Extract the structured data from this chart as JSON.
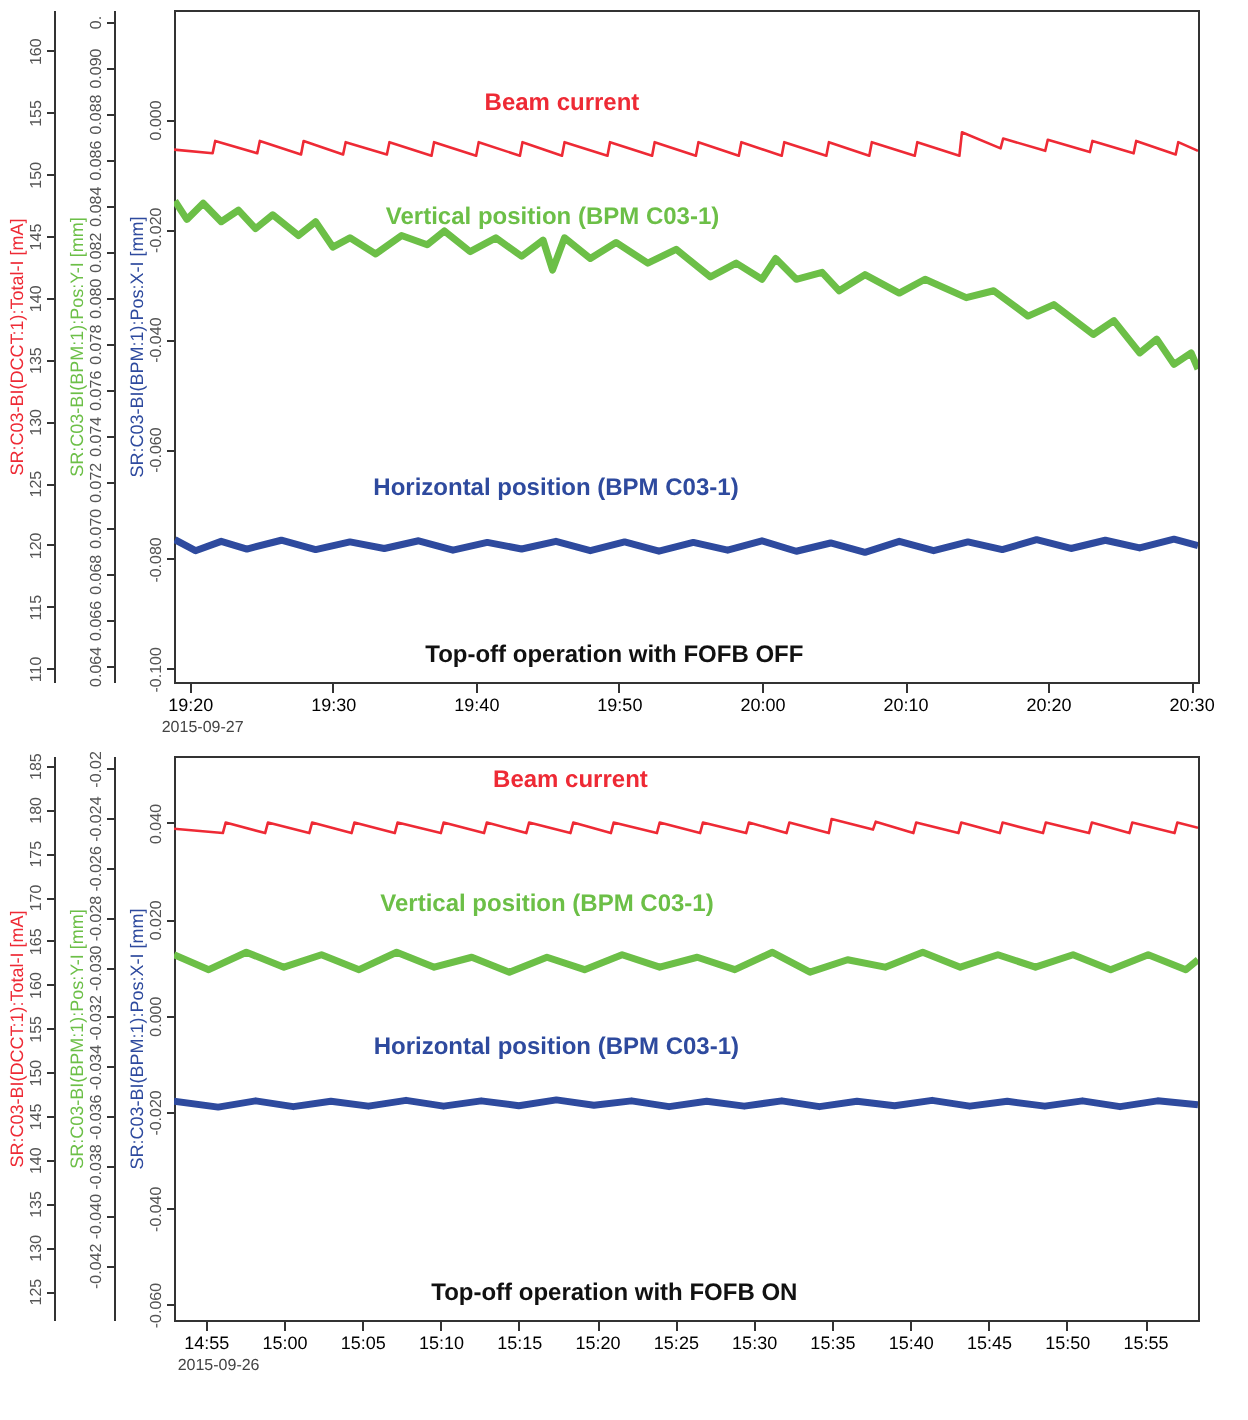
{
  "chart_data": [
    {
      "type": "line",
      "title": "Top-off operation with FOFB OFF",
      "ylabel": "SR:C03-BI(DCCT:1):Total-I [mA]",
      "y2label": "SR:C03-BI(BPM:1):Pos:Y-I [mm]",
      "y3label": "SR:C03-BI(BPM:1):Pos:X-I [mm]",
      "annotations": [
        "2015-09-27"
      ],
      "xlim": [
        19.315,
        20.508
      ],
      "xticks": [
        {
          "value": 19.3333,
          "label": "19:20"
        },
        {
          "value": 19.5,
          "label": "19:30"
        },
        {
          "value": 19.6667,
          "label": "19:40"
        },
        {
          "value": 19.8333,
          "label": "19:50"
        },
        {
          "value": 20,
          "label": "20:00"
        },
        {
          "value": 20.1667,
          "label": "20:10"
        },
        {
          "value": 20.3333,
          "label": "20:20"
        },
        {
          "value": 20.5,
          "label": "20:30"
        }
      ],
      "ylim": [
        108.9,
        163.3
      ],
      "yticks": [
        110,
        115,
        120,
        125,
        130,
        135,
        140,
        145,
        150,
        155,
        160
      ],
      "y2lim": [
        0.0633,
        0.0925
      ],
      "y2ticks": [
        0.064,
        0.066,
        0.068,
        {
          "value": 0.07,
          "label": "0.070"
        },
        0.072,
        0.074,
        0.076,
        0.078,
        {
          "value": 0.08,
          "label": "0.080"
        },
        0.082,
        0.084,
        0.086,
        0.088,
        {
          "value": 0.09,
          "label": "0.090"
        },
        {
          "value": 0.092,
          "label": "0."
        }
      ],
      "y3lim": [
        -0.1024,
        0.0199
      ],
      "y3ticks": [
        {
          "value": -0.1,
          "label": "-0.100"
        },
        {
          "value": -0.08,
          "label": "-0.080"
        },
        {
          "value": -0.06,
          "label": "-0.060"
        },
        {
          "value": -0.04,
          "label": "-0.040"
        },
        {
          "value": -0.02,
          "label": "-0.020"
        },
        {
          "value": 0,
          "label": "0.000"
        }
      ],
      "series": [
        {
          "name": "Beam current",
          "color": "#ee2a35",
          "x": [
            19.315,
            19.36,
            19.363,
            19.412,
            19.415,
            19.463,
            19.466,
            19.512,
            19.515,
            19.563,
            19.566,
            19.615,
            19.618,
            19.667,
            19.67,
            19.718,
            19.721,
            19.767,
            19.77,
            19.82,
            19.823,
            19.872,
            19.875,
            19.923,
            19.926,
            19.973,
            19.976,
            20.023,
            20.026,
            20.075,
            20.078,
            20.125,
            20.128,
            20.178,
            20.181,
            20.23,
            20.233,
            20.278,
            20.281,
            20.33,
            20.333,
            20.382,
            20.385,
            20.433,
            20.436,
            20.482,
            20.485,
            20.508
          ],
          "values": [
            152.0,
            151.7,
            152.7,
            151.7,
            152.7,
            151.6,
            152.7,
            151.6,
            152.6,
            151.6,
            152.6,
            151.5,
            152.6,
            151.5,
            152.6,
            151.5,
            152.6,
            151.5,
            152.6,
            151.5,
            152.6,
            151.5,
            152.6,
            151.5,
            152.6,
            151.5,
            152.6,
            151.5,
            152.6,
            151.5,
            152.6,
            151.5,
            152.6,
            151.5,
            152.6,
            151.5,
            153.4,
            152.1,
            152.9,
            151.9,
            152.8,
            151.8,
            152.7,
            151.7,
            152.7,
            151.6,
            152.6,
            151.9
          ]
        },
        {
          "name": "Vertical position (BPM C03-1)",
          "color": "#6cbf47",
          "axis": "y2",
          "x": [
            19.316,
            19.33,
            19.349,
            19.37,
            19.39,
            19.41,
            19.43,
            19.46,
            19.48,
            19.5,
            19.52,
            19.55,
            19.58,
            19.61,
            19.63,
            19.66,
            19.69,
            19.72,
            19.745,
            19.756,
            19.77,
            19.8,
            19.83,
            19.867,
            19.9,
            19.94,
            19.97,
            20.0,
            20.016,
            20.04,
            20.07,
            20.09,
            20.12,
            20.16,
            20.19,
            20.238,
            20.27,
            20.31,
            20.34,
            20.386,
            20.41,
            20.44,
            20.46,
            20.48,
            20.5,
            20.508
          ],
          "values": [
            0.0842,
            0.0834,
            0.0841,
            0.0833,
            0.0838,
            0.083,
            0.0836,
            0.0827,
            0.0833,
            0.0822,
            0.0826,
            0.0819,
            0.0827,
            0.0823,
            0.0829,
            0.082,
            0.0826,
            0.0818,
            0.0825,
            0.0812,
            0.0826,
            0.0817,
            0.0824,
            0.0815,
            0.0821,
            0.0809,
            0.0815,
            0.0808,
            0.0817,
            0.0808,
            0.0811,
            0.0803,
            0.081,
            0.0802,
            0.0808,
            0.08,
            0.0803,
            0.0792,
            0.0797,
            0.0784,
            0.079,
            0.0776,
            0.0782,
            0.0771,
            0.0776,
            0.0769
          ]
        },
        {
          "name": "Horizontal position (BPM C03-1)",
          "color": "#2e4a9e",
          "axis": "y3",
          "x": [
            19.316,
            19.34,
            19.37,
            19.4,
            19.44,
            19.48,
            19.52,
            19.56,
            19.6,
            19.64,
            19.68,
            19.72,
            19.76,
            19.8,
            19.84,
            19.88,
            19.92,
            19.96,
            20.0,
            20.04,
            20.08,
            20.12,
            20.16,
            20.2,
            20.24,
            20.28,
            20.32,
            20.36,
            20.4,
            20.44,
            20.48,
            20.508
          ],
          "values": [
            -0.0765,
            -0.0785,
            -0.0768,
            -0.0782,
            -0.0766,
            -0.0783,
            -0.0769,
            -0.0781,
            -0.0767,
            -0.0784,
            -0.077,
            -0.0782,
            -0.0768,
            -0.0785,
            -0.0769,
            -0.0786,
            -0.077,
            -0.0784,
            -0.0767,
            -0.0786,
            -0.0771,
            -0.0788,
            -0.0768,
            -0.0785,
            -0.0769,
            -0.0783,
            -0.0765,
            -0.0781,
            -0.0766,
            -0.078,
            -0.0764,
            -0.0776
          ]
        }
      ]
    },
    {
      "type": "line",
      "title": "Top-off operation with FOFB ON",
      "ylabel": "SR:C03-BI(DCCT:1):Total-I [mA]",
      "y2label": "SR:C03-BI(BPM:1):Pos:Y-I [mm]",
      "y3label": "SR:C03-BI(BPM:1):Pos:X-I [mm]",
      "annotations": [
        "2015-09-26"
      ],
      "xlim": [
        14.883,
        15.973
      ],
      "xticks": [
        {
          "value": 14.9167,
          "label": "14:55"
        },
        {
          "value": 15,
          "label": "15:00"
        },
        {
          "value": 15.0833,
          "label": "15:05"
        },
        {
          "value": 15.1667,
          "label": "15:10"
        },
        {
          "value": 15.25,
          "label": "15:15"
        },
        {
          "value": 15.3333,
          "label": "15:20"
        },
        {
          "value": 15.4167,
          "label": "15:25"
        },
        {
          "value": 15.5,
          "label": "15:30"
        },
        {
          "value": 15.5833,
          "label": "15:35"
        },
        {
          "value": 15.6667,
          "label": "15:40"
        },
        {
          "value": 15.75,
          "label": "15:45"
        },
        {
          "value": 15.8333,
          "label": "15:50"
        },
        {
          "value": 15.9167,
          "label": "15:55"
        }
      ],
      "ylim": [
        121.7,
        186.1
      ],
      "yticks": [
        125,
        130,
        135,
        140,
        145,
        150,
        155,
        160,
        165,
        170,
        175,
        180,
        185
      ],
      "y2lim": [
        -0.0442,
        -0.0215
      ],
      "y2ticks": [
        -0.042,
        {
          "value": -0.04,
          "label": "-0.040"
        },
        -0.038,
        -0.036,
        -0.034,
        -0.032,
        {
          "value": -0.03,
          "label": "-0.030"
        },
        -0.028,
        -0.026,
        -0.024,
        {
          "value": -0.022,
          "label": "-0.02"
        }
      ],
      "y3lim": [
        -0.0632,
        0.0539
      ],
      "y3ticks": [
        {
          "value": -0.06,
          "label": "-0.060"
        },
        {
          "value": -0.04,
          "label": "-0.040"
        },
        {
          "value": -0.02,
          "label": "-0.020"
        },
        {
          "value": 0,
          "label": "0.000"
        },
        {
          "value": 0.02,
          "label": "0.020"
        },
        {
          "value": 0.04,
          "label": "0.040"
        }
      ],
      "series": [
        {
          "name": "Beam current",
          "color": "#ee2a35",
          "x": [
            14.883,
            14.935,
            14.938,
            14.98,
            14.983,
            15.027,
            15.03,
            15.072,
            15.075,
            15.118,
            15.121,
            15.167,
            15.17,
            15.213,
            15.216,
            15.258,
            15.261,
            15.305,
            15.308,
            15.348,
            15.351,
            15.397,
            15.4,
            15.443,
            15.446,
            15.492,
            15.495,
            15.535,
            15.538,
            15.58,
            15.583,
            15.627,
            15.63,
            15.67,
            15.673,
            15.718,
            15.721,
            15.762,
            15.765,
            15.808,
            15.811,
            15.857,
            15.86,
            15.9,
            15.903,
            15.948,
            15.951,
            15.973
          ],
          "values": [
            177.8,
            177.3,
            178.5,
            177.3,
            178.5,
            177.3,
            178.5,
            177.3,
            178.5,
            177.3,
            178.5,
            177.3,
            178.5,
            177.3,
            178.5,
            177.3,
            178.5,
            177.3,
            178.5,
            177.3,
            178.5,
            177.3,
            178.5,
            177.3,
            178.5,
            177.3,
            178.5,
            177.3,
            178.5,
            177.3,
            178.9,
            177.7,
            178.6,
            177.3,
            178.5,
            177.3,
            178.5,
            177.3,
            178.5,
            177.3,
            178.5,
            177.3,
            178.5,
            177.3,
            178.5,
            177.3,
            178.5,
            177.9
          ]
        },
        {
          "name": "Vertical position (BPM C03-1)",
          "color": "#6cbf47",
          "axis": "y2",
          "x": [
            14.883,
            14.92,
            14.96,
            15.0,
            15.04,
            15.08,
            15.12,
            15.16,
            15.2,
            15.24,
            15.28,
            15.32,
            15.36,
            15.4,
            15.44,
            15.48,
            15.52,
            15.56,
            15.6,
            15.64,
            15.68,
            15.72,
            15.76,
            15.8,
            15.84,
            15.88,
            15.92,
            15.96,
            15.973
          ],
          "values": [
            -0.0295,
            -0.0301,
            -0.0294,
            -0.03,
            -0.0295,
            -0.0301,
            -0.0294,
            -0.03,
            -0.0296,
            -0.0302,
            -0.0296,
            -0.0301,
            -0.0295,
            -0.03,
            -0.0296,
            -0.0301,
            -0.0294,
            -0.0302,
            -0.0297,
            -0.03,
            -0.0294,
            -0.03,
            -0.0295,
            -0.03,
            -0.0295,
            -0.0301,
            -0.0295,
            -0.0301,
            -0.0297
          ]
        },
        {
          "name": "Horizontal position (BPM C03-1)",
          "color": "#2e4a9e",
          "axis": "y3",
          "x": [
            14.883,
            14.93,
            14.97,
            15.01,
            15.05,
            15.09,
            15.13,
            15.17,
            15.21,
            15.25,
            15.29,
            15.33,
            15.37,
            15.41,
            15.45,
            15.49,
            15.53,
            15.57,
            15.61,
            15.65,
            15.69,
            15.73,
            15.77,
            15.81,
            15.85,
            15.89,
            15.93,
            15.973
          ],
          "values": [
            -0.0178,
            -0.019,
            -0.0177,
            -0.0189,
            -0.0178,
            -0.0188,
            -0.0176,
            -0.0188,
            -0.0177,
            -0.0187,
            -0.0175,
            -0.0186,
            -0.0177,
            -0.0189,
            -0.0178,
            -0.0188,
            -0.0177,
            -0.0189,
            -0.0178,
            -0.0187,
            -0.0176,
            -0.0188,
            -0.0178,
            -0.0188,
            -0.0177,
            -0.0189,
            -0.0177,
            -0.0185
          ]
        }
      ]
    }
  ]
}
